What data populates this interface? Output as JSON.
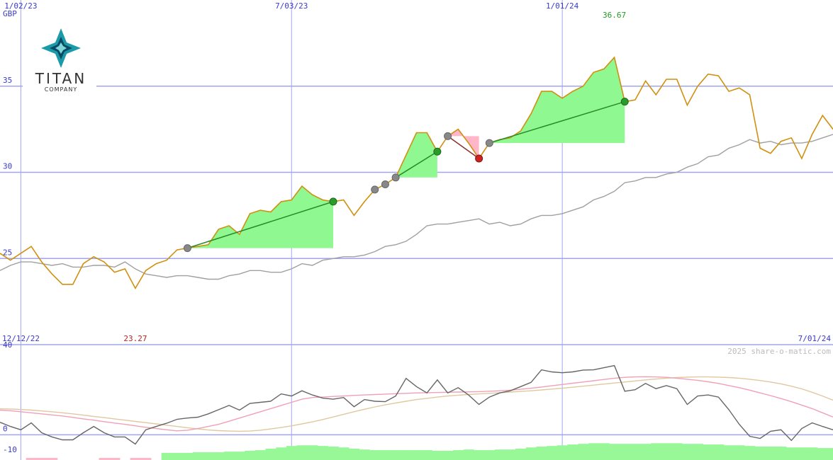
{
  "logo": {
    "name": "TITAN",
    "sub": "COMPANY"
  },
  "watermark": "2025 share-o-matic.com",
  "date_range": [
    "12/12/22",
    "7/01/24"
  ],
  "chart_data": [
    {
      "type": "line",
      "y_label": "GBP",
      "xlim": [
        0,
        80
      ],
      "ylim": [
        20,
        40
      ],
      "yticks": [
        25,
        30,
        35
      ],
      "xticks": [
        {
          "value": 2,
          "label": "1/02/23"
        },
        {
          "value": 28,
          "label": "7/03/23"
        },
        {
          "value": 54,
          "label": "1/01/24"
        }
      ],
      "grid": true,
      "series": [
        {
          "name": "price",
          "color": "#d09010",
          "values": [
            25.3,
            24.9,
            25.3,
            25.7,
            24.8,
            24.1,
            23.5,
            23.5,
            24.7,
            25.1,
            24.8,
            24.2,
            24.4,
            23.27,
            24.3,
            24.7,
            24.9,
            25.5,
            25.6,
            25.7,
            25.8,
            26.7,
            26.9,
            26.4,
            27.6,
            27.8,
            27.7,
            28.3,
            28.4,
            29.2,
            28.7,
            28.4,
            28.3,
            28.4,
            27.5,
            28.3,
            29.0,
            29.3,
            29.7,
            31.0,
            32.3,
            32.3,
            31.2,
            32.1,
            32.5,
            31.7,
            30.8,
            31.7,
            31.9,
            32.0,
            32.4,
            33.4,
            34.7,
            34.7,
            34.3,
            34.7,
            35.0,
            35.8,
            36.0,
            36.67,
            34.1,
            34.2,
            35.3,
            34.5,
            35.4,
            35.4,
            33.9,
            35.0,
            35.7,
            35.6,
            34.7,
            34.9,
            34.5,
            31.4,
            31.1,
            31.8,
            32.0,
            30.8,
            32.2,
            33.3,
            32.5
          ]
        },
        {
          "name": "average",
          "color": "#a0a0a0",
          "values": [
            24.3,
            24.6,
            24.8,
            24.8,
            24.7,
            24.6,
            24.7,
            24.5,
            24.5,
            24.6,
            24.6,
            24.5,
            24.8,
            24.4,
            24.1,
            24.0,
            23.9,
            24.0,
            24.0,
            23.9,
            23.8,
            23.8,
            24.0,
            24.1,
            24.3,
            24.3,
            24.2,
            24.2,
            24.4,
            24.7,
            24.6,
            24.9,
            25.0,
            25.1,
            25.1,
            25.2,
            25.4,
            25.7,
            25.8,
            26.0,
            26.4,
            26.9,
            27.0,
            27.0,
            27.1,
            27.2,
            27.3,
            27.0,
            27.1,
            26.9,
            27.0,
            27.3,
            27.5,
            27.5,
            27.6,
            27.8,
            28.0,
            28.4,
            28.6,
            28.9,
            29.4,
            29.5,
            29.7,
            29.7,
            29.9,
            30.0,
            30.3,
            30.5,
            30.9,
            31.0,
            31.4,
            31.6,
            31.9,
            31.7,
            31.8,
            31.6,
            31.7,
            31.7,
            31.8,
            32.0,
            32.2
          ]
        }
      ],
      "trades": [
        {
          "entry": 18,
          "exit": 32,
          "color": "#90f890"
        },
        {
          "entry": 38,
          "exit": 42,
          "color": "#90f890"
        },
        {
          "entry": 43,
          "exit": 46,
          "color": "#ffb6c8"
        },
        {
          "entry": 47,
          "exit": 60,
          "color": "#90f890"
        }
      ],
      "signals": [
        36,
        37
      ],
      "annotations": [
        {
          "label": "36.67",
          "x": 59,
          "color": "#229922"
        },
        {
          "label": "23.27",
          "x": 13,
          "color": "#bb2222"
        }
      ]
    },
    {
      "type": "line",
      "xlim": [
        0,
        80
      ],
      "ylim": [
        -12,
        43
      ],
      "yticks": [
        40,
        0,
        -10
      ],
      "zero_line": true,
      "series": [
        {
          "name": "momentum",
          "color": "#666666",
          "values": [
            6,
            4,
            2.4,
            5.7,
            1,
            -1,
            -2.4,
            -2.4,
            1,
            4,
            1,
            -1,
            -1,
            -4.4,
            2.4,
            4,
            5.5,
            7.4,
            8,
            8.4,
            10,
            12,
            14,
            11.8,
            15,
            15.5,
            16,
            19.5,
            18.5,
            21,
            19,
            17.5,
            17,
            17.8,
            13.4,
            16.8,
            16,
            15.8,
            18.5,
            26.9,
            23,
            20,
            26.2,
            20,
            22.5,
            19,
            14.5,
            18,
            20,
            21,
            23,
            25,
            31,
            30,
            29.6,
            30,
            30.9,
            31,
            32,
            33,
            20.8,
            21.5,
            24.5,
            22,
            23.5,
            22,
            14.5,
            18.5,
            19,
            18,
            12,
            5,
            -0.7,
            -1.7,
            1.7,
            2.4,
            -2.7,
            3,
            5.7,
            4,
            2.4
          ]
        },
        {
          "name": "fast",
          "color": "#f0a0b8",
          "values": [
            11.8,
            11.5,
            11,
            10.5,
            10,
            9.5,
            9,
            8.3,
            7.6,
            7,
            6.3,
            5.6,
            5,
            4.3,
            3.6,
            3,
            2.4,
            1.9,
            2.2,
            3,
            4,
            5,
            6.5,
            8,
            9.5,
            11,
            12.5,
            14,
            15.5,
            17,
            17.8,
            18,
            18.3,
            18.5,
            18.8,
            19,
            19.2,
            19.4,
            19.6,
            19.8,
            20,
            20.1,
            20.2,
            20.3,
            20.4,
            20.5,
            20.6,
            20.8,
            21,
            21.3,
            21.7,
            22.2,
            22.8,
            23.4,
            24,
            24.6,
            25.2,
            25.8,
            26.4,
            27,
            27.4,
            27.6,
            27.7,
            27.6,
            27.4,
            27,
            26.5,
            26,
            25.3,
            24.5,
            23.5,
            22.5,
            21.3,
            20,
            18.7,
            17.3,
            15.8,
            14.2,
            12.5,
            10.5,
            8.5
          ]
        },
        {
          "name": "slow",
          "color": "#e0c8a0",
          "values": [
            12.4,
            12.3,
            12.1,
            11.8,
            11.4,
            11,
            10.5,
            10,
            9.4,
            8.8,
            8.2,
            7.6,
            7,
            6.4,
            5.8,
            5.2,
            4.6,
            4,
            3.4,
            2.8,
            2.3,
            2,
            1.8,
            1.7,
            1.8,
            2.2,
            2.8,
            3.5,
            4.3,
            5.2,
            6.2,
            7.3,
            8.5,
            9.8,
            11,
            12.2,
            13.3,
            14.3,
            15.2,
            16,
            16.8,
            17.4,
            18,
            18.5,
            18.9,
            19.2,
            19.5,
            19.8,
            20.1,
            20.4,
            20.7,
            21,
            21.4,
            21.8,
            22.2,
            22.7,
            23.2,
            23.7,
            24.2,
            24.7,
            25.2,
            25.7,
            26.2,
            26.6,
            27,
            27.3,
            27.5,
            27.6,
            27.6,
            27.5,
            27.3,
            27,
            26.5,
            25.9,
            25.2,
            24.3,
            23.2,
            21.9,
            20.3,
            18.5,
            16.5
          ]
        }
      ],
      "bars": [
        {
          "name": "up",
          "color": "#98f898",
          "values": [
            null,
            null,
            null,
            null,
            null,
            null,
            null,
            null,
            null,
            null,
            null,
            null,
            null,
            null,
            null,
            null,
            -8.6,
            -8.6,
            -8.6,
            -8.3,
            -8.3,
            -8.3,
            -8,
            -8,
            -7.6,
            -7.3,
            -6.6,
            -6,
            -5.3,
            -5,
            -5,
            -5.3,
            -5.6,
            -6,
            -6.6,
            -7,
            -7.3,
            -7.3,
            -7.3,
            -7.3,
            -7.3,
            -7.3,
            -7.6,
            -7.6,
            -7.3,
            -7,
            -7.3,
            -7.3,
            -7,
            -7,
            -6.6,
            -6,
            -5.6,
            -5.3,
            -5,
            -4.6,
            -4.3,
            -4,
            -4,
            -4.3,
            -4.3,
            -4.3,
            -4.3,
            -4,
            -4,
            -4,
            -4.3,
            -4.3,
            -4.6,
            -4.6,
            -5,
            -5,
            -5.3,
            -5.6,
            -5.6,
            -5.6,
            -6,
            -6,
            -6,
            -6.3,
            -6.3
          ]
        },
        {
          "name": "down",
          "color": "#ffb6c8",
          "values": [
            null,
            null,
            null,
            -11,
            -11,
            -11,
            null,
            null,
            null,
            null,
            -11,
            -11,
            null,
            -11,
            -11,
            null,
            null,
            null,
            null,
            null,
            null,
            null,
            null,
            null,
            null,
            null,
            null,
            null,
            null,
            null,
            null,
            null,
            null,
            null,
            null,
            null,
            null,
            null,
            null,
            null,
            null,
            null,
            null,
            null,
            null,
            null,
            null,
            null,
            null,
            null,
            null,
            null,
            null,
            null,
            null,
            null,
            null,
            null,
            null,
            null,
            null,
            null,
            null,
            null,
            null,
            null,
            null,
            null,
            null,
            null,
            null,
            null,
            null,
            null,
            null,
            null,
            null,
            null,
            null,
            null,
            null
          ]
        }
      ]
    }
  ]
}
